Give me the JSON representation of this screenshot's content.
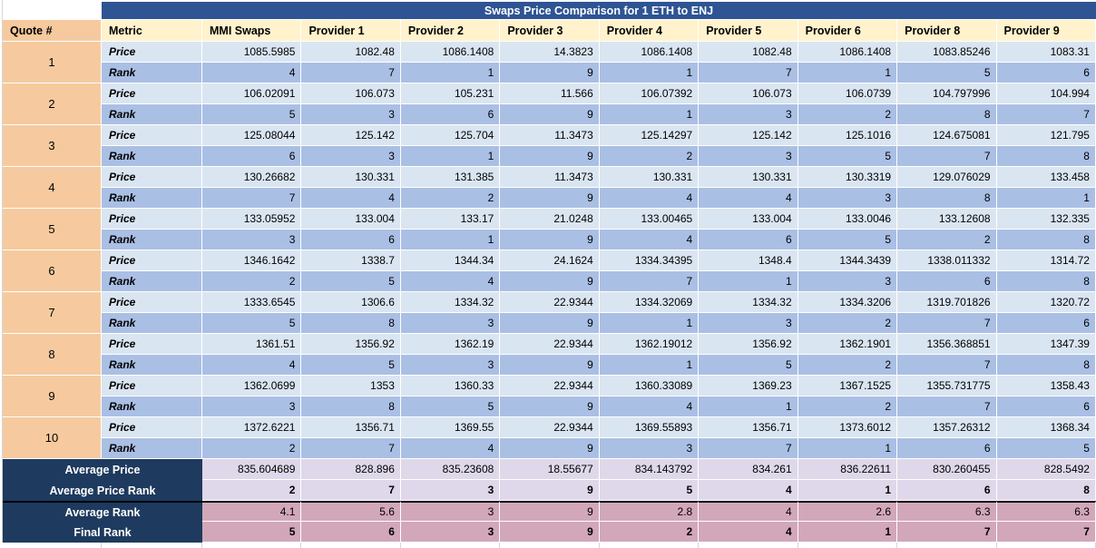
{
  "title": "Swaps Price Comparison for 1 ETH to ENJ",
  "columns": [
    "Quote #",
    "Metric",
    "MMI Swaps",
    "Provider 1",
    "Provider 2",
    "Provider 3",
    "Provider 4",
    "Provider 5",
    "Provider 6",
    "Provider 8",
    "Provider 9"
  ],
  "metric_labels": {
    "price": "Price",
    "rank": "Rank"
  },
  "quotes": [
    {
      "num": "1",
      "price": [
        "1085.5985",
        "1082.48",
        "1086.1408",
        "14.3823",
        "1086.1408",
        "1082.48",
        "1086.1408",
        "1083.85246",
        "1083.31"
      ],
      "rank": [
        "4",
        "7",
        "1",
        "9",
        "1",
        "7",
        "1",
        "5",
        "6"
      ]
    },
    {
      "num": "2",
      "price": [
        "106.02091",
        "106.073",
        "105.231",
        "11.566",
        "106.07392",
        "106.073",
        "106.0739",
        "104.797996",
        "104.994"
      ],
      "rank": [
        "5",
        "3",
        "6",
        "9",
        "1",
        "3",
        "2",
        "8",
        "7"
      ]
    },
    {
      "num": "3",
      "price": [
        "125.08044",
        "125.142",
        "125.704",
        "11.3473",
        "125.14297",
        "125.142",
        "125.1016",
        "124.675081",
        "121.795"
      ],
      "rank": [
        "6",
        "3",
        "1",
        "9",
        "2",
        "3",
        "5",
        "7",
        "8"
      ]
    },
    {
      "num": "4",
      "price": [
        "130.26682",
        "130.331",
        "131.385",
        "11.3473",
        "130.331",
        "130.331",
        "130.3319",
        "129.076029",
        "133.458"
      ],
      "rank": [
        "7",
        "4",
        "2",
        "9",
        "4",
        "4",
        "3",
        "8",
        "1"
      ]
    },
    {
      "num": "5",
      "price": [
        "133.05952",
        "133.004",
        "133.17",
        "21.0248",
        "133.00465",
        "133.004",
        "133.0046",
        "133.12608",
        "132.335"
      ],
      "rank": [
        "3",
        "6",
        "1",
        "9",
        "4",
        "6",
        "5",
        "2",
        "8"
      ]
    },
    {
      "num": "6",
      "price": [
        "1346.1642",
        "1338.7",
        "1344.34",
        "24.1624",
        "1334.34395",
        "1348.4",
        "1344.3439",
        "1338.011332",
        "1314.72"
      ],
      "rank": [
        "2",
        "5",
        "4",
        "9",
        "7",
        "1",
        "3",
        "6",
        "8"
      ]
    },
    {
      "num": "7",
      "price": [
        "1333.6545",
        "1306.6",
        "1334.32",
        "22.9344",
        "1334.32069",
        "1334.32",
        "1334.3206",
        "1319.701826",
        "1320.72"
      ],
      "rank": [
        "5",
        "8",
        "3",
        "9",
        "1",
        "3",
        "2",
        "7",
        "6"
      ]
    },
    {
      "num": "8",
      "price": [
        "1361.51",
        "1356.92",
        "1362.19",
        "22.9344",
        "1362.19012",
        "1356.92",
        "1362.1901",
        "1356.368851",
        "1347.39"
      ],
      "rank": [
        "4",
        "5",
        "3",
        "9",
        "1",
        "5",
        "2",
        "7",
        "8"
      ]
    },
    {
      "num": "9",
      "price": [
        "1362.0699",
        "1353",
        "1360.33",
        "22.9344",
        "1360.33089",
        "1369.23",
        "1367.1525",
        "1355.731775",
        "1358.43"
      ],
      "rank": [
        "3",
        "8",
        "5",
        "9",
        "4",
        "1",
        "2",
        "7",
        "6"
      ]
    },
    {
      "num": "10",
      "price": [
        "1372.6221",
        "1356.71",
        "1369.55",
        "22.9344",
        "1369.55893",
        "1356.71",
        "1373.6012",
        "1357.26312",
        "1368.34"
      ],
      "rank": [
        "2",
        "7",
        "4",
        "9",
        "3",
        "7",
        "1",
        "6",
        "5"
      ]
    }
  ],
  "summary_rows": [
    {
      "label": "Average Price",
      "style": "lavender",
      "bold": false,
      "divider": false,
      "values": [
        "835.604689",
        "828.896",
        "835.23608",
        "18.55677",
        "834.143792",
        "834.261",
        "836.22611",
        "830.260455",
        "828.5492"
      ]
    },
    {
      "label": "Average Price Rank",
      "style": "lavender",
      "bold": true,
      "divider": false,
      "values": [
        "2",
        "7",
        "3",
        "9",
        "5",
        "4",
        "1",
        "6",
        "8"
      ]
    },
    {
      "label": "Average Rank",
      "style": "pink",
      "bold": false,
      "divider": true,
      "values": [
        "4.1",
        "5.6",
        "3",
        "9",
        "2.8",
        "4",
        "2.6",
        "6.3",
        "6.3"
      ]
    },
    {
      "label": "Final Rank",
      "style": "pink",
      "bold": true,
      "divider": false,
      "values": [
        "5",
        "6",
        "3",
        "9",
        "2",
        "4",
        "1",
        "7",
        "7"
      ]
    }
  ],
  "colors": {
    "title_bg": "#2E5494",
    "header_bg": "#FFF2CC",
    "quote_bg": "#F6CA9E",
    "price_bg": "#DAE5F2",
    "rank_bg": "#AABFE4",
    "lavender_bg": "#DED8EA",
    "pink_bg": "#D2A7BA",
    "navy_bg": "#1E3A5E"
  }
}
